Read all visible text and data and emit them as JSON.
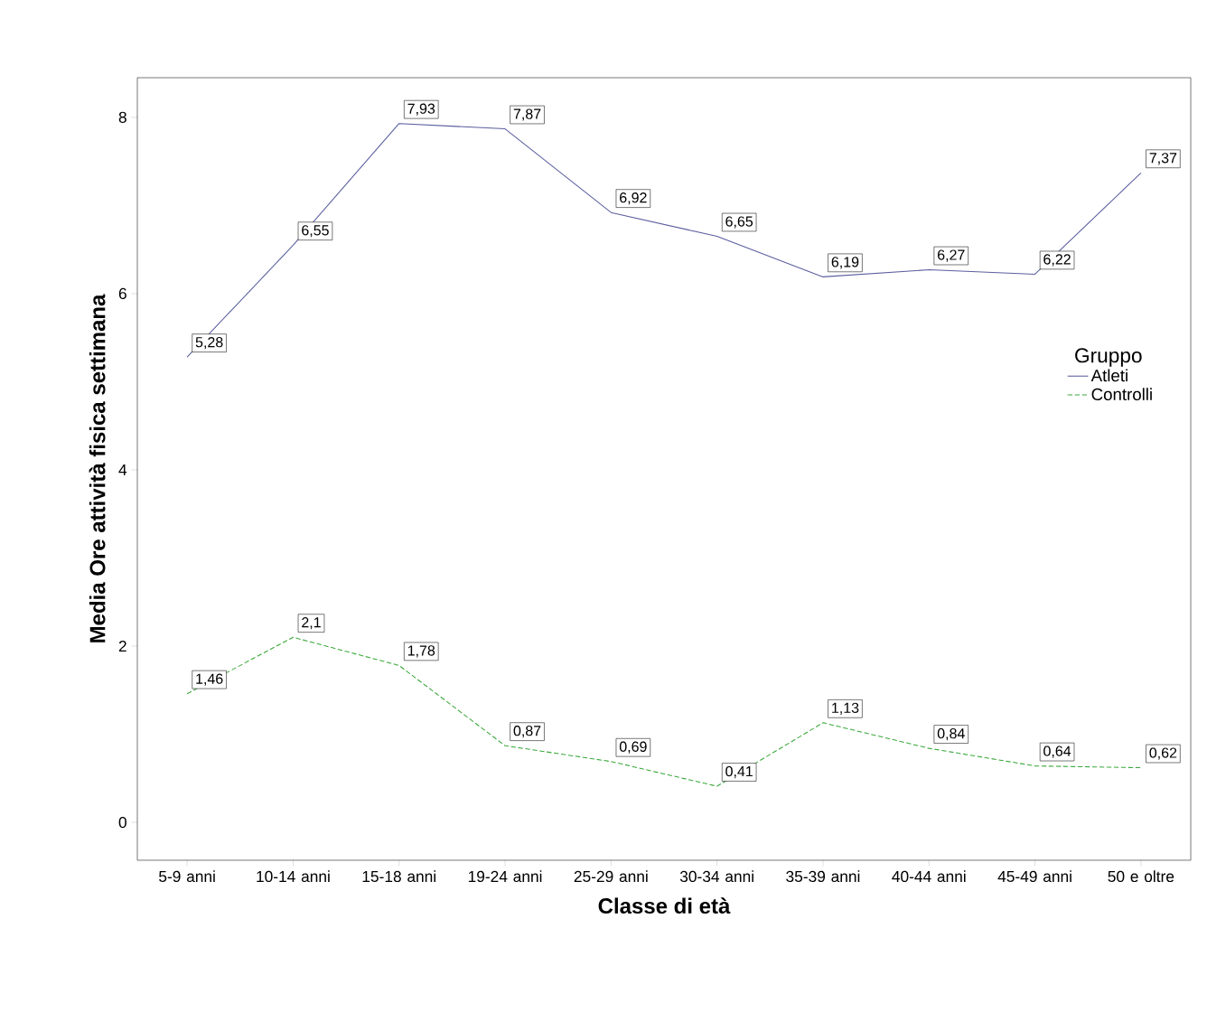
{
  "chart_data": {
    "type": "line",
    "xlabel": "Classe di età",
    "ylabel": "Media Ore attività fisica settimana",
    "legend_title": "Gruppo",
    "categories": [
      "5-9 anni",
      "10-14 anni",
      "15-18 anni",
      "19-24 anni",
      "25-29 anni",
      "30-34 anni",
      "35-39 anni",
      "40-44 anni",
      "45-49 anni",
      "50 e oltre"
    ],
    "series": [
      {
        "name": "Atleti",
        "color": "#5a5f9e",
        "line_style": "solid",
        "values": [
          5.28,
          6.55,
          7.93,
          7.87,
          6.92,
          6.65,
          6.19,
          6.27,
          6.22,
          7.37
        ],
        "value_labels": [
          "5,28",
          "6,55",
          "7,93",
          "7,87",
          "6,92",
          "6,65",
          "6,19",
          "6,27",
          "6,22",
          "7,37"
        ]
      },
      {
        "name": "Controlli",
        "color": "#3aa83a",
        "line_style": "dashed",
        "values": [
          1.46,
          2.1,
          1.78,
          0.87,
          0.69,
          0.41,
          1.13,
          0.84,
          0.64,
          0.62
        ],
        "value_labels": [
          "1,46",
          "2,1",
          "1,78",
          "0,87",
          "0,69",
          "0,41",
          "1,13",
          "0,84",
          "0,64",
          "0,62"
        ]
      }
    ],
    "ylim": [
      -0.43,
      8.45
    ],
    "yticks": [
      0,
      2,
      4,
      6,
      8
    ],
    "grid": false,
    "marker": "none",
    "legend": "right"
  }
}
